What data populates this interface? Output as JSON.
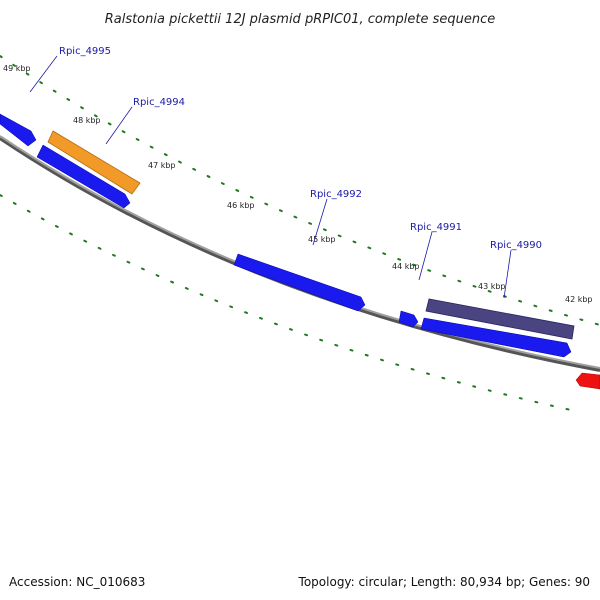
{
  "title": "Ralstonia pickettii 12J plasmid pRPIC01, complete sequence",
  "footer": {
    "accession": "Accession: NC_010683",
    "summary": "Topology: circular; Length: 80,934 bp; Genes: 90"
  },
  "scale_labels": [
    "49 kbp",
    "48 kbp",
    "47 kbp",
    "46 kbp",
    "45 kbp",
    "44 kbp",
    "43 kbp",
    "42 kbp"
  ],
  "gene_labels": [
    "Rpic_4995",
    "Rpic_4994",
    "Rpic_4992",
    "Rpic_4991",
    "Rpic_4990"
  ],
  "colors": {
    "backbone": "#8c8c8c",
    "cds_forward": "#1a1aee",
    "cds_reverse": "#1a1aee",
    "highlight_orange": "#f29a27",
    "highlight_purple": "#4a4580",
    "rna_red": "#ee1111",
    "tick_green": "#1f7a1f",
    "label_blue": "#1a1aa6"
  }
}
